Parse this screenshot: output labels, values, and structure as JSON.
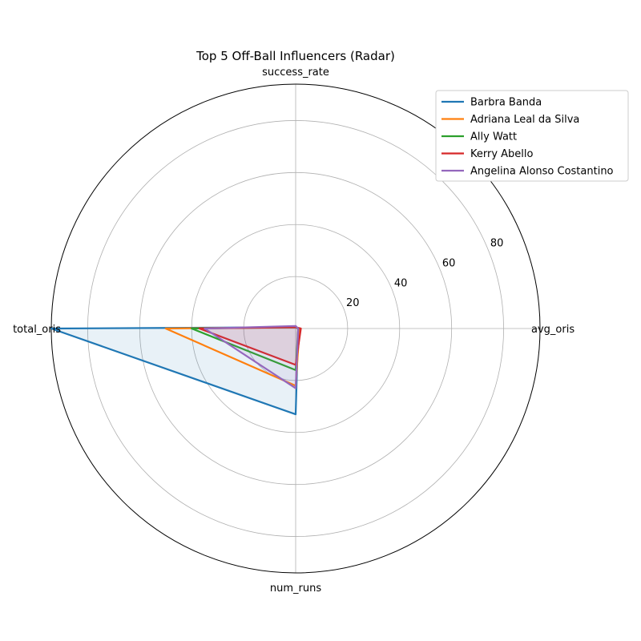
{
  "chart_data": {
    "type": "radar",
    "title": "Top 5 Off-Ball Influencers (Radar)",
    "axes": [
      "success_rate",
      "avg_oris",
      "num_runs",
      "total_oris"
    ],
    "rticks": [
      20,
      40,
      60,
      80
    ],
    "rlim": [
      0,
      94
    ],
    "grid": true,
    "legend_position": "top-right",
    "series": [
      {
        "name": "Barbra Banda",
        "color": "#1f77b4",
        "values": [
          0.5,
          1.0,
          33,
          94
        ],
        "fill": true
      },
      {
        "name": "Adriana Leal da Silva",
        "color": "#ff7f0e",
        "values": [
          0.5,
          1.5,
          22,
          50
        ],
        "fill": false
      },
      {
        "name": "Ally Watt",
        "color": "#2ca02c",
        "values": [
          0.5,
          1.0,
          16,
          40
        ],
        "fill": false
      },
      {
        "name": "Kerry Abello",
        "color": "#d62728",
        "values": [
          0.5,
          2.0,
          14,
          37
        ],
        "fill": true
      },
      {
        "name": "Angelina Alonso Costantino",
        "color": "#9467bd",
        "values": [
          1.0,
          1.0,
          23,
          35
        ],
        "fill": true
      }
    ]
  }
}
